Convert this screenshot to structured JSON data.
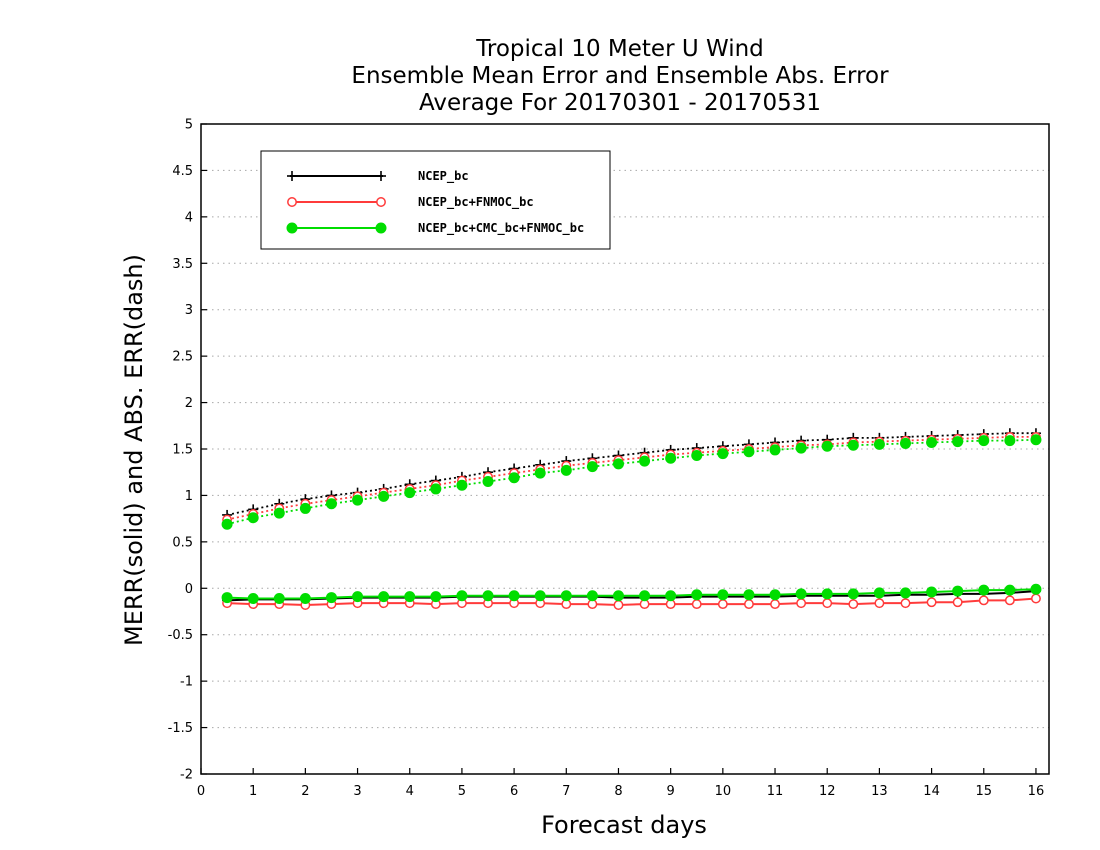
{
  "chart_data": {
    "type": "line",
    "title": "Tropical 10 Meter U Wind",
    "subtitle_1": "Ensemble Mean Error and Ensemble Abs. Error",
    "subtitle_2": "Average For 20170301 - 20170531",
    "xlabel": "Forecast days",
    "ylabel": "MERR(solid) and ABS. ERR(dash)",
    "xlim": [
      0,
      16.25
    ],
    "ylim": [
      -2,
      5
    ],
    "xticks": [
      0,
      1,
      2,
      3,
      4,
      5,
      6,
      7,
      8,
      9,
      10,
      11,
      12,
      13,
      14,
      15,
      16
    ],
    "yticks": [
      -2,
      -1.5,
      -1,
      -0.5,
      0,
      0.5,
      1,
      1.5,
      2,
      2.5,
      3,
      3.5,
      4,
      4.5,
      5
    ],
    "ytick_labels": [
      "-2",
      "-1.5",
      "-1",
      "-0.5",
      "0",
      "0.5",
      "1",
      "1.5",
      "2",
      "2.5",
      "3",
      "3.5",
      "4",
      "4.5",
      "5"
    ],
    "grid": "horizontal dotted",
    "legend_position": "top-left",
    "x": [
      0.5,
      1,
      1.5,
      2,
      2.5,
      3,
      3.5,
      4,
      4.5,
      5,
      5.5,
      6,
      6.5,
      7,
      7.5,
      8,
      8.5,
      9,
      9.5,
      10,
      10.5,
      11,
      11.5,
      12,
      12.5,
      13,
      13.5,
      14,
      14.5,
      15,
      15.5,
      16
    ],
    "series": [
      {
        "name": "NCEP_bc",
        "color": "#000000",
        "marker": "plus",
        "mean_error": [
          -0.13,
          -0.12,
          -0.12,
          -0.12,
          -0.11,
          -0.1,
          -0.1,
          -0.1,
          -0.1,
          -0.09,
          -0.09,
          -0.09,
          -0.09,
          -0.09,
          -0.09,
          -0.1,
          -0.1,
          -0.1,
          -0.09,
          -0.09,
          -0.09,
          -0.09,
          -0.08,
          -0.08,
          -0.08,
          -0.08,
          -0.07,
          -0.07,
          -0.06,
          -0.06,
          -0.05,
          -0.03
        ],
        "abs_error": [
          0.79,
          0.85,
          0.91,
          0.96,
          1.0,
          1.03,
          1.07,
          1.12,
          1.16,
          1.2,
          1.25,
          1.29,
          1.33,
          1.37,
          1.4,
          1.43,
          1.46,
          1.49,
          1.51,
          1.53,
          1.55,
          1.57,
          1.59,
          1.6,
          1.62,
          1.62,
          1.63,
          1.64,
          1.65,
          1.66,
          1.67,
          1.67
        ]
      },
      {
        "name": "NCEP_bc+FNMOC_bc",
        "color": "#ff3b3b",
        "marker": "open-circle",
        "mean_error": [
          -0.16,
          -0.17,
          -0.17,
          -0.18,
          -0.17,
          -0.16,
          -0.16,
          -0.16,
          -0.17,
          -0.16,
          -0.16,
          -0.16,
          -0.16,
          -0.17,
          -0.17,
          -0.18,
          -0.17,
          -0.17,
          -0.17,
          -0.17,
          -0.17,
          -0.17,
          -0.16,
          -0.16,
          -0.17,
          -0.16,
          -0.16,
          -0.15,
          -0.15,
          -0.13,
          -0.13,
          -0.11
        ],
        "abs_error": [
          0.74,
          0.8,
          0.86,
          0.91,
          0.95,
          0.99,
          1.03,
          1.07,
          1.11,
          1.16,
          1.2,
          1.24,
          1.28,
          1.32,
          1.35,
          1.38,
          1.41,
          1.44,
          1.46,
          1.48,
          1.5,
          1.52,
          1.54,
          1.55,
          1.57,
          1.58,
          1.59,
          1.6,
          1.61,
          1.62,
          1.63,
          1.63
        ]
      },
      {
        "name": "NCEP_bc+CMC_bc+FNMOC_bc",
        "color": "#00dd00",
        "marker": "filled-circle",
        "mean_error": [
          -0.1,
          -0.11,
          -0.11,
          -0.11,
          -0.1,
          -0.09,
          -0.09,
          -0.09,
          -0.09,
          -0.08,
          -0.08,
          -0.08,
          -0.08,
          -0.08,
          -0.08,
          -0.08,
          -0.08,
          -0.08,
          -0.07,
          -0.07,
          -0.07,
          -0.07,
          -0.06,
          -0.06,
          -0.06,
          -0.05,
          -0.05,
          -0.04,
          -0.03,
          -0.02,
          -0.02,
          -0.01
        ],
        "abs_error": [
          0.69,
          0.76,
          0.81,
          0.86,
          0.91,
          0.95,
          0.99,
          1.03,
          1.07,
          1.11,
          1.15,
          1.19,
          1.24,
          1.27,
          1.31,
          1.34,
          1.37,
          1.4,
          1.43,
          1.45,
          1.47,
          1.49,
          1.51,
          1.53,
          1.54,
          1.55,
          1.56,
          1.57,
          1.58,
          1.59,
          1.59,
          1.6
        ]
      }
    ]
  }
}
